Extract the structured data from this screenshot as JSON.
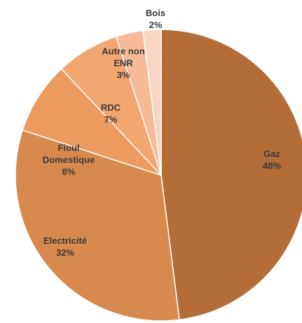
{
  "chart_data": {
    "type": "pie",
    "categories": [
      "Gaz",
      "Electricité",
      "Fioul Domestique",
      "RDC",
      "Autre non ENR",
      "Bois"
    ],
    "values": [
      48,
      32,
      8,
      7,
      3,
      2
    ],
    "value_labels": [
      "48%",
      "32%",
      "8%",
      "7%",
      "3%",
      "2%"
    ],
    "colors": [
      "#b36d38",
      "#d88a4e",
      "#ec9a5e",
      "#f2a670",
      "#f6bb96",
      "#f9d6c4"
    ]
  }
}
